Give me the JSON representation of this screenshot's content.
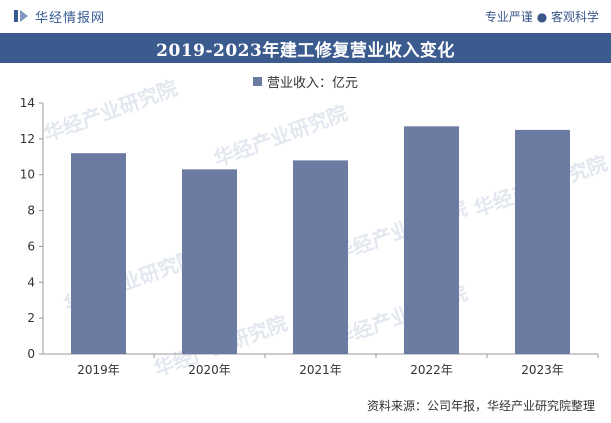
{
  "header": {
    "brand": "华经情报网",
    "slogan": "专业严谨 ● 客观科学"
  },
  "footer": {
    "source": "资料来源：公司年报，华经产业研究院整理"
  },
  "watermark": {
    "text": "华经产业研究院",
    "url": "www.huaon.com"
  },
  "colors": {
    "bar": "#6b7ba2",
    "title_band": "#3b5b8f",
    "brand": "#355b91"
  },
  "chart_data": {
    "type": "bar",
    "title": "2019-2023年建工修复营业收入变化",
    "categories": [
      "2019年",
      "2020年",
      "2021年",
      "2022年",
      "2023年"
    ],
    "series": [
      {
        "name": "营业收入：亿元",
        "values": [
          11.2,
          10.3,
          10.8,
          12.7,
          12.5
        ]
      }
    ],
    "ylim": [
      0,
      14
    ],
    "yticks": [
      0,
      2,
      4,
      6,
      8,
      10,
      12,
      14
    ],
    "grid": false,
    "legend": "top-center"
  }
}
